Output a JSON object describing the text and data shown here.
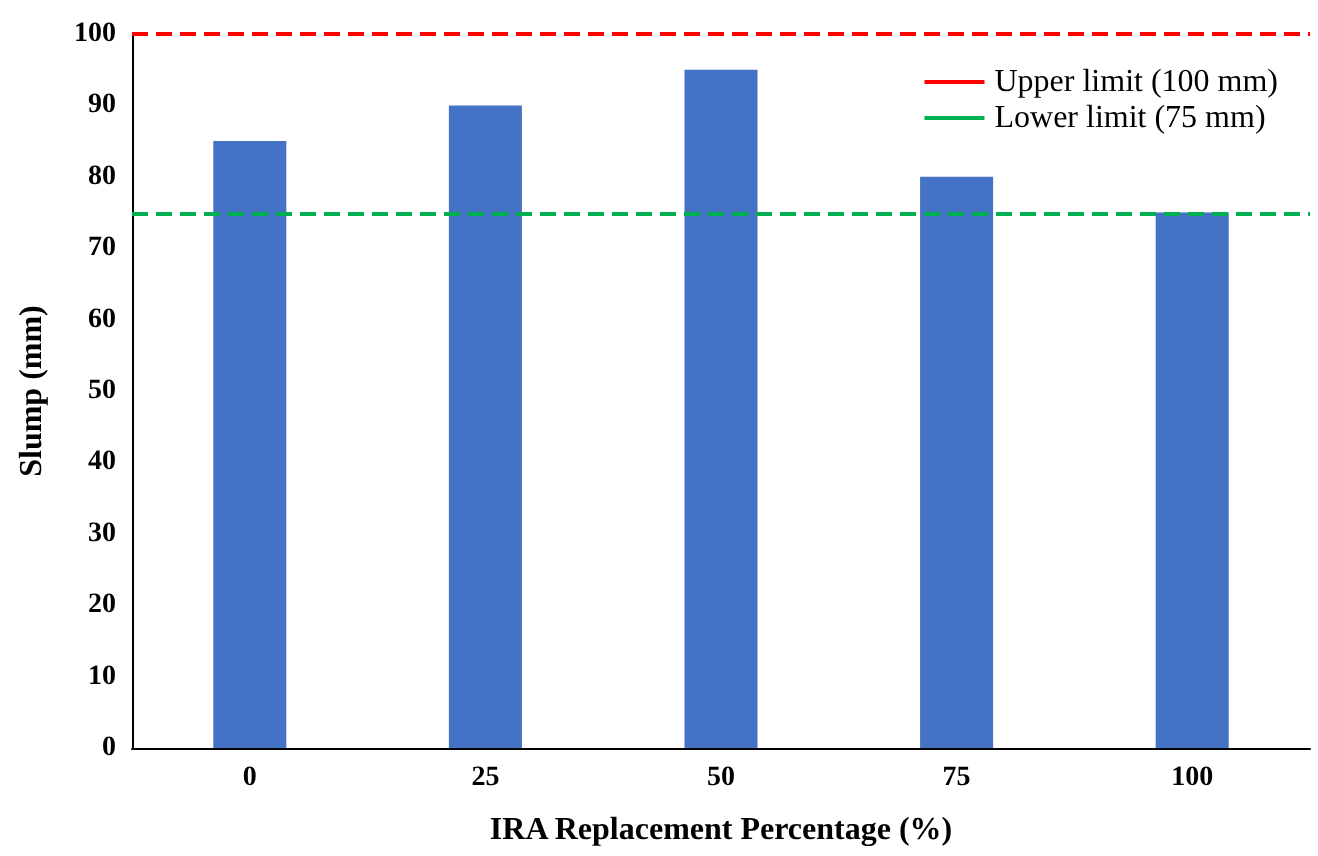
{
  "chart_data": {
    "type": "bar",
    "xlabel": "IRA Replacement Percentage (%)",
    "ylabel": "Slump (mm)",
    "categories": [
      "0",
      "25",
      "50",
      "75",
      "100"
    ],
    "values": [
      85,
      90,
      95,
      80,
      75
    ],
    "color": "#4472c4",
    "ylim": [
      0,
      100
    ],
    "yticks": [
      0,
      10,
      20,
      30,
      40,
      50,
      60,
      70,
      80,
      90,
      100
    ],
    "grid": false,
    "legend": "top right",
    "ref_lines": [
      {
        "axis": "y",
        "value": 100,
        "label": "Upper limit (100 mm)",
        "color": "#ff0000",
        "line_style": "dashed"
      },
      {
        "axis": "y",
        "value": 75,
        "label": "Lower limit (75 mm)",
        "color": "#00b050",
        "line_style": "dashed"
      }
    ]
  }
}
